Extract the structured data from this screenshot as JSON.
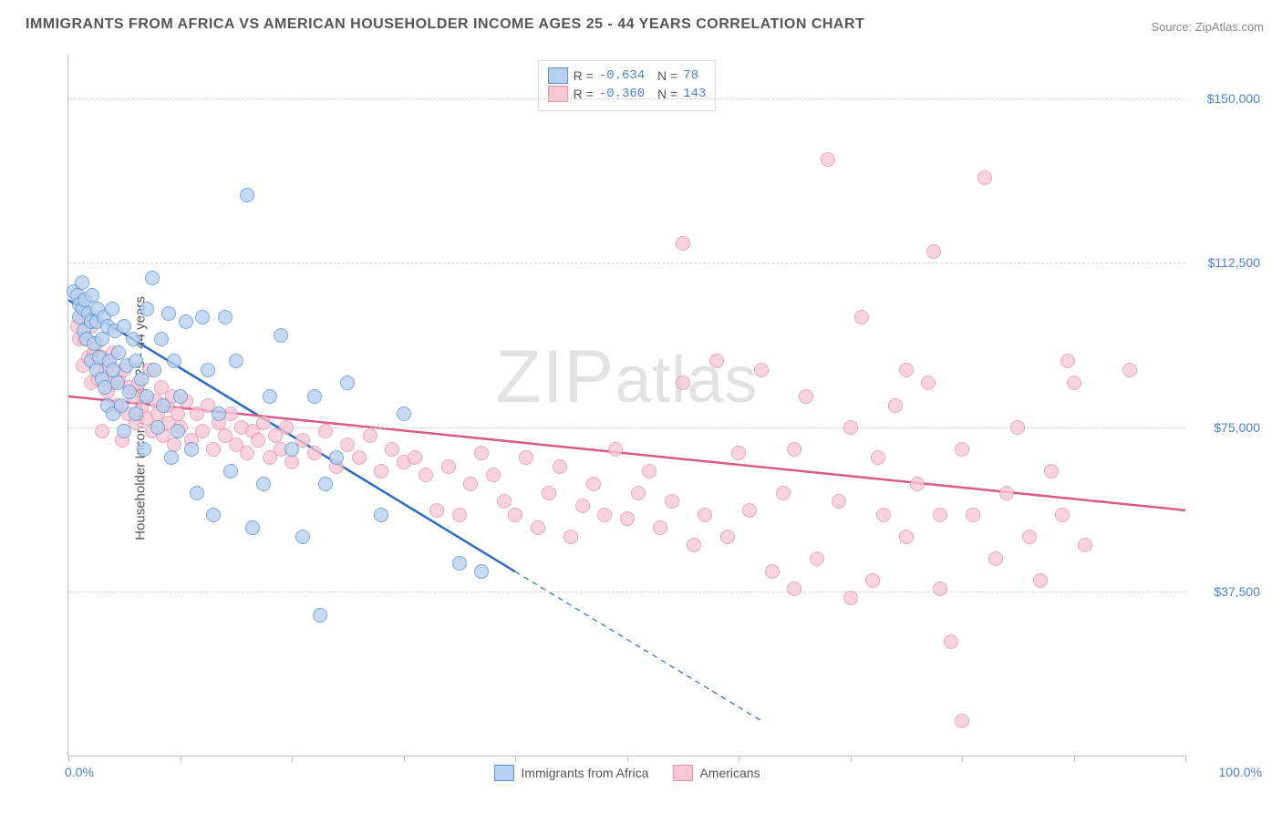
{
  "title": "IMMIGRANTS FROM AFRICA VS AMERICAN HOUSEHOLDER INCOME AGES 25 - 44 YEARS CORRELATION CHART",
  "source": "Source: ZipAtlas.com",
  "ylabel": "Householder Income Ages 25 - 44 years",
  "watermark": "ZIPatlas",
  "chart": {
    "type": "scatter-correlation",
    "background_color": "#ffffff",
    "grid_color": "#d0d0d0",
    "axis_color": "#c0c0c0",
    "xlim_labels": [
      "0.0%",
      "100.0%"
    ],
    "xlim": [
      0,
      100
    ],
    "ylim": [
      0,
      160000
    ],
    "ytick_values": [
      37500,
      75000,
      112500,
      150000
    ],
    "ytick_labels": [
      "$37,500",
      "$75,000",
      "$112,500",
      "$150,000"
    ],
    "xtick_positions": [
      0,
      10,
      20,
      30,
      40,
      50,
      60,
      70,
      80,
      90,
      100
    ],
    "label_font_color": "#4a7fd8",
    "label_font_size": 14,
    "axis_label_color": "#555555",
    "marker_radius": 8,
    "marker_border_width": 1.5,
    "series": [
      {
        "name": "Immigrants from Africa",
        "fill": "#b8d0f0",
        "stroke": "#5a8fd0",
        "line_color": "#2d6bc0",
        "line_width": 2.5,
        "R": "-0.634",
        "N": "78",
        "trend": {
          "x1": 0,
          "y1": 104000,
          "x2": 40,
          "y2": 42000,
          "dash_x2": 62,
          "dash_y2": 8000
        },
        "points": [
          [
            0.5,
            106000
          ],
          [
            0.8,
            105000
          ],
          [
            1.0,
            103000
          ],
          [
            1.0,
            100000
          ],
          [
            1.2,
            108000
          ],
          [
            1.3,
            102000
          ],
          [
            1.4,
            97000
          ],
          [
            1.5,
            104000
          ],
          [
            1.6,
            95000
          ],
          [
            1.8,
            101000
          ],
          [
            2.0,
            99000
          ],
          [
            2.0,
            90000
          ],
          [
            2.1,
            105000
          ],
          [
            2.3,
            94000
          ],
          [
            2.5,
            99000
          ],
          [
            2.5,
            88000
          ],
          [
            2.6,
            102000
          ],
          [
            2.8,
            91000
          ],
          [
            3.0,
            95000
          ],
          [
            3.0,
            86000
          ],
          [
            3.2,
            100000
          ],
          [
            3.3,
            84000
          ],
          [
            3.5,
            98000
          ],
          [
            3.5,
            80000
          ],
          [
            3.7,
            90000
          ],
          [
            3.9,
            102000
          ],
          [
            4.0,
            88000
          ],
          [
            4.0,
            78000
          ],
          [
            4.2,
            97000
          ],
          [
            4.4,
            85000
          ],
          [
            4.5,
            92000
          ],
          [
            4.7,
            80000
          ],
          [
            5.0,
            98000
          ],
          [
            5.0,
            74000
          ],
          [
            5.2,
            89000
          ],
          [
            5.5,
            83000
          ],
          [
            5.8,
            95000
          ],
          [
            6.0,
            78000
          ],
          [
            6.0,
            90000
          ],
          [
            6.5,
            86000
          ],
          [
            6.8,
            70000
          ],
          [
            7.0,
            102000
          ],
          [
            7.0,
            82000
          ],
          [
            7.5,
            109000
          ],
          [
            7.7,
            88000
          ],
          [
            8.0,
            75000
          ],
          [
            8.3,
            95000
          ],
          [
            8.5,
            80000
          ],
          [
            9.0,
            101000
          ],
          [
            9.2,
            68000
          ],
          [
            9.5,
            90000
          ],
          [
            9.8,
            74000
          ],
          [
            10.0,
            82000
          ],
          [
            10.5,
            99000
          ],
          [
            11.0,
            70000
          ],
          [
            11.5,
            60000
          ],
          [
            12.0,
            100000
          ],
          [
            12.5,
            88000
          ],
          [
            13.0,
            55000
          ],
          [
            13.5,
            78000
          ],
          [
            14.0,
            100000
          ],
          [
            14.5,
            65000
          ],
          [
            15.0,
            90000
          ],
          [
            16.0,
            128000
          ],
          [
            16.5,
            52000
          ],
          [
            17.5,
            62000
          ],
          [
            18.0,
            82000
          ],
          [
            19.0,
            96000
          ],
          [
            20.0,
            70000
          ],
          [
            21.0,
            50000
          ],
          [
            22.0,
            82000
          ],
          [
            22.5,
            32000
          ],
          [
            23.0,
            62000
          ],
          [
            24.0,
            68000
          ],
          [
            25.0,
            85000
          ],
          [
            28.0,
            55000
          ],
          [
            30.0,
            78000
          ],
          [
            35.0,
            44000
          ],
          [
            37.0,
            42000
          ]
        ]
      },
      {
        "name": "Americans",
        "fill": "#f7c7d4",
        "stroke": "#e090a8",
        "line_color": "#d85a88",
        "line_width": 2.5,
        "R": "-0.360",
        "N": "143",
        "trend": {
          "x1": 0,
          "y1": 82000,
          "x2": 100,
          "y2": 56000
        },
        "points": [
          [
            0.8,
            98000
          ],
          [
            1.0,
            95000
          ],
          [
            1.2,
            100000
          ],
          [
            1.3,
            89000
          ],
          [
            1.5,
            95000
          ],
          [
            1.8,
            91000
          ],
          [
            2.0,
            98000
          ],
          [
            2.0,
            85000
          ],
          [
            2.3,
            92000
          ],
          [
            2.5,
            94000
          ],
          [
            2.7,
            86000
          ],
          [
            3.0,
            91000
          ],
          [
            3.0,
            74000
          ],
          [
            3.3,
            88000
          ],
          [
            3.5,
            83000
          ],
          [
            3.7,
            89000
          ],
          [
            4.0,
            85000
          ],
          [
            4.0,
            92000
          ],
          [
            4.3,
            80000
          ],
          [
            4.5,
            86000
          ],
          [
            4.8,
            72000
          ],
          [
            5.0,
            88000
          ],
          [
            5.3,
            78000
          ],
          [
            5.5,
            84000
          ],
          [
            5.8,
            82000
          ],
          [
            6.0,
            76000
          ],
          [
            6.3,
            85000
          ],
          [
            6.5,
            79000
          ],
          [
            6.8,
            82000
          ],
          [
            7.0,
            77000
          ],
          [
            7.3,
            88000
          ],
          [
            7.5,
            74000
          ],
          [
            7.8,
            81000
          ],
          [
            8.0,
            78000
          ],
          [
            8.3,
            84000
          ],
          [
            8.5,
            73000
          ],
          [
            8.8,
            80000
          ],
          [
            9.0,
            76000
          ],
          [
            9.3,
            82000
          ],
          [
            9.5,
            71000
          ],
          [
            9.8,
            78000
          ],
          [
            10.0,
            75000
          ],
          [
            10.5,
            81000
          ],
          [
            11.0,
            72000
          ],
          [
            11.5,
            78000
          ],
          [
            12.0,
            74000
          ],
          [
            12.5,
            80000
          ],
          [
            13.0,
            70000
          ],
          [
            13.5,
            76000
          ],
          [
            14.0,
            73000
          ],
          [
            14.5,
            78000
          ],
          [
            15.0,
            71000
          ],
          [
            15.5,
            75000
          ],
          [
            16.0,
            69000
          ],
          [
            16.5,
            74000
          ],
          [
            17.0,
            72000
          ],
          [
            17.5,
            76000
          ],
          [
            18.0,
            68000
          ],
          [
            18.5,
            73000
          ],
          [
            19.0,
            70000
          ],
          [
            19.5,
            75000
          ],
          [
            20.0,
            67000
          ],
          [
            21.0,
            72000
          ],
          [
            22.0,
            69000
          ],
          [
            23.0,
            74000
          ],
          [
            24.0,
            66000
          ],
          [
            25.0,
            71000
          ],
          [
            26.0,
            68000
          ],
          [
            27.0,
            73000
          ],
          [
            28.0,
            65000
          ],
          [
            29.0,
            70000
          ],
          [
            30.0,
            67000
          ],
          [
            31.0,
            68000
          ],
          [
            32.0,
            64000
          ],
          [
            33.0,
            56000
          ],
          [
            34.0,
            66000
          ],
          [
            35.0,
            55000
          ],
          [
            36.0,
            62000
          ],
          [
            37.0,
            69000
          ],
          [
            38.0,
            64000
          ],
          [
            39.0,
            58000
          ],
          [
            40.0,
            55000
          ],
          [
            41.0,
            68000
          ],
          [
            42.0,
            52000
          ],
          [
            43.0,
            60000
          ],
          [
            44.0,
            66000
          ],
          [
            45.0,
            50000
          ],
          [
            46.0,
            57000
          ],
          [
            47.0,
            62000
          ],
          [
            48.0,
            55000
          ],
          [
            49.0,
            70000
          ],
          [
            50.0,
            54000
          ],
          [
            51.0,
            60000
          ],
          [
            52.0,
            65000
          ],
          [
            53.0,
            52000
          ],
          [
            54.0,
            58000
          ],
          [
            55.0,
            85000
          ],
          [
            55.0,
            117000
          ],
          [
            56.0,
            48000
          ],
          [
            57.0,
            55000
          ],
          [
            58.0,
            90000
          ],
          [
            59.0,
            50000
          ],
          [
            60.0,
            69000
          ],
          [
            61.0,
            56000
          ],
          [
            62.0,
            88000
          ],
          [
            63.0,
            42000
          ],
          [
            64.0,
            60000
          ],
          [
            65.0,
            70000
          ],
          [
            66.0,
            82000
          ],
          [
            67.0,
            45000
          ],
          [
            68.0,
            136000
          ],
          [
            69.0,
            58000
          ],
          [
            70.0,
            75000
          ],
          [
            71.0,
            100000
          ],
          [
            72.0,
            40000
          ],
          [
            72.5,
            68000
          ],
          [
            73.0,
            55000
          ],
          [
            74.0,
            80000
          ],
          [
            75.0,
            50000
          ],
          [
            76.0,
            62000
          ],
          [
            77.0,
            85000
          ],
          [
            77.5,
            115000
          ],
          [
            78.0,
            38000
          ],
          [
            79.0,
            26000
          ],
          [
            80.0,
            70000
          ],
          [
            81.0,
            55000
          ],
          [
            82.0,
            132000
          ],
          [
            83.0,
            45000
          ],
          [
            84.0,
            60000
          ],
          [
            85.0,
            75000
          ],
          [
            86.0,
            50000
          ],
          [
            87.0,
            40000
          ],
          [
            88.0,
            65000
          ],
          [
            89.0,
            55000
          ],
          [
            89.5,
            90000
          ],
          [
            90.0,
            85000
          ],
          [
            91.0,
            48000
          ],
          [
            95.0,
            88000
          ],
          [
            65.0,
            38000
          ],
          [
            70.0,
            36000
          ],
          [
            75.0,
            88000
          ],
          [
            78.0,
            55000
          ],
          [
            80.0,
            8000
          ]
        ]
      }
    ]
  }
}
